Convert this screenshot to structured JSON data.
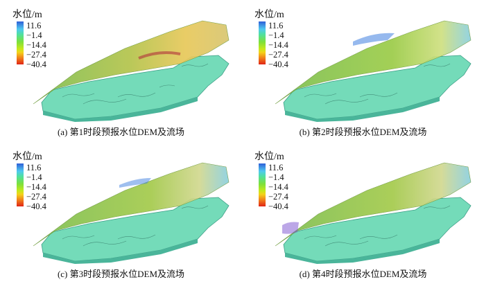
{
  "legend": {
    "title": "水位/m",
    "ticks": [
      "11.6",
      "−1.4",
      "−14.4",
      "−27.4",
      "−40.4"
    ],
    "colors": [
      "#2f5fd8",
      "#4fc9ef",
      "#7ee03a",
      "#f4d21a",
      "#e02416"
    ]
  },
  "panels": [
    {
      "caption": "(a) 第1时段预报水位DEM及流场"
    },
    {
      "caption": "(b) 第2时段预报水位DEM及流场"
    },
    {
      "caption": "(c) 第3时段预报水位DEM及流场"
    },
    {
      "caption": "(d) 第4时段预报水位DEM及流场"
    }
  ],
  "surface_colors": {
    "terrain": "#74dbb9",
    "terrain_edge": "#3c9e86",
    "water_surface": "#a8c468"
  }
}
